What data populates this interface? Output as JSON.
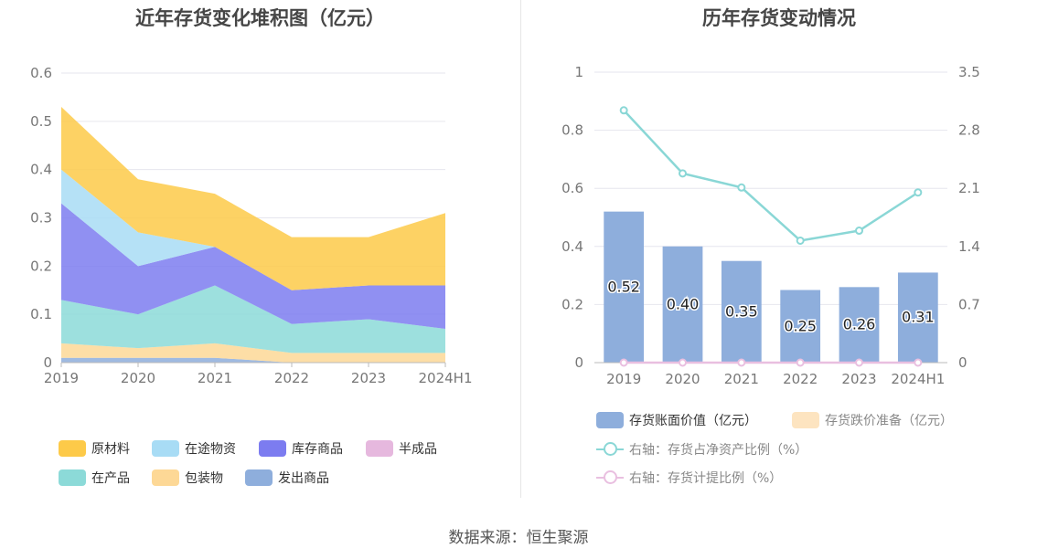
{
  "left_chart": {
    "title": "近年存货变化堆积图（亿元）",
    "legend": [
      {
        "label": "原材料",
        "color": "#fdca49"
      },
      {
        "label": "在途物资",
        "color": "#a8dcf5"
      },
      {
        "label": "库存商品",
        "color": "#7c7cf0"
      },
      {
        "label": "半成品",
        "color": "#e6b8de"
      },
      {
        "label": "在产品",
        "color": "#8cdad8"
      },
      {
        "label": "包装物",
        "color": "#fdd896"
      },
      {
        "label": "发出商品",
        "color": "#8eaedc"
      }
    ]
  },
  "right_chart": {
    "title": "历年存货变动情况",
    "legend": [
      {
        "label": "存货账面价值（亿元）",
        "color": "#8eaedc",
        "kind": "bar"
      },
      {
        "label": "存货跌价准备（亿元）",
        "color": "#fde4c0",
        "kind": "bar"
      },
      {
        "label": "右轴：存货占净资产比例（%）",
        "color": "#8ad7d6",
        "kind": "line"
      },
      {
        "label": "右轴：存货计提比例（%）",
        "color": "#e9bfe0",
        "kind": "line"
      }
    ]
  },
  "source": "数据来源：恒生聚源",
  "chart_data": [
    {
      "type": "area",
      "stacked": true,
      "title": "近年存货变化堆积图（亿元）",
      "categories": [
        "2019",
        "2020",
        "2021",
        "2022",
        "2023",
        "2024H1"
      ],
      "ylim": [
        0,
        0.6
      ],
      "yticks": [
        0,
        0.1,
        0.2,
        0.3,
        0.4,
        0.5,
        0.6
      ],
      "series": [
        {
          "name": "发出商品",
          "color": "#8eaedc",
          "values": [
            0.01,
            0.01,
            0.01,
            0.0,
            0.0,
            0.0
          ]
        },
        {
          "name": "包装物",
          "color": "#fdd896",
          "values": [
            0.03,
            0.02,
            0.03,
            0.02,
            0.02,
            0.02
          ]
        },
        {
          "name": "在产品",
          "color": "#8cdad8",
          "values": [
            0.09,
            0.07,
            0.12,
            0.06,
            0.07,
            0.05
          ]
        },
        {
          "name": "半成品",
          "color": "#e6b8de",
          "values": [
            0.0,
            0.0,
            0.0,
            0.0,
            0.0,
            0.0
          ]
        },
        {
          "name": "库存商品",
          "color": "#7c7cf0",
          "values": [
            0.2,
            0.1,
            0.08,
            0.07,
            0.07,
            0.09
          ]
        },
        {
          "name": "在途物资",
          "color": "#a8dcf5",
          "values": [
            0.07,
            0.07,
            0.0,
            0.0,
            0.0,
            0.0
          ]
        },
        {
          "name": "原材料",
          "color": "#fdca49",
          "values": [
            0.13,
            0.11,
            0.11,
            0.11,
            0.1,
            0.15
          ]
        }
      ],
      "legend_position": "bottom",
      "grid": true
    },
    {
      "type": "bar",
      "title": "历年存货变动情况",
      "categories": [
        "2019",
        "2020",
        "2021",
        "2022",
        "2023",
        "2024H1"
      ],
      "ylim": [
        0,
        1
      ],
      "yticks": [
        "0",
        "0.2",
        "0.4",
        "0.6",
        "0.8",
        "1"
      ],
      "y2lim": [
        0,
        3.5
      ],
      "y2ticks": [
        "0",
        "0.7",
        "1.4",
        "2.1",
        "2.8",
        "3.5"
      ],
      "series": [
        {
          "name": "存货账面价值（亿元）",
          "type": "bar",
          "axis": "left",
          "color": "#8eaedc",
          "values": [
            0.52,
            0.4,
            0.35,
            0.25,
            0.26,
            0.31
          ],
          "labels": [
            "0.52",
            "0.40",
            "0.35",
            "0.25",
            "0.26",
            "0.31"
          ]
        },
        {
          "name": "存货跌价准备（亿元）",
          "type": "bar",
          "axis": "left",
          "color": "#fde4c0",
          "values": [
            0,
            0,
            0,
            0,
            0,
            0
          ]
        },
        {
          "name": "右轴：存货占净资产比例（%）",
          "type": "line",
          "axis": "right",
          "color": "#8ad7d6",
          "values": [
            3.04,
            2.28,
            2.11,
            1.47,
            1.59,
            2.05
          ]
        },
        {
          "name": "右轴：存货计提比例（%）",
          "type": "line",
          "axis": "right",
          "color": "#e9bfe0",
          "values": [
            0,
            0,
            0,
            0,
            0,
            0
          ]
        }
      ],
      "legend_position": "bottom",
      "grid": true
    }
  ]
}
